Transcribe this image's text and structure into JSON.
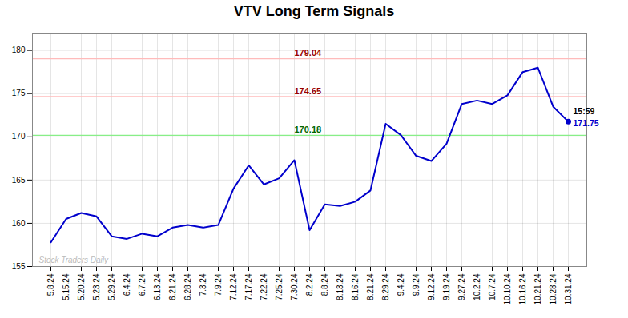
{
  "chart_data": {
    "type": "line",
    "title": "VTV Long Term Signals",
    "categories": [
      "5.8.24",
      "5.15.24",
      "5.20.24",
      "5.23.24",
      "5.29.24",
      "6.4.24",
      "6.7.24",
      "6.13.24",
      "6.21.24",
      "6.28.24",
      "7.3.24",
      "7.9.24",
      "7.12.24",
      "7.17.24",
      "7.22.24",
      "7.25.24",
      "7.30.24",
      "8.2.24",
      "8.8.24",
      "8.13.24",
      "8.16.24",
      "8.21.24",
      "8.29.24",
      "9.4.24",
      "9.9.24",
      "9.12.24",
      "9.19.24",
      "9.27.24",
      "10.2.24",
      "10.7.24",
      "10.10.24",
      "10.16.24",
      "10.21.24",
      "10.28.24",
      "10.31.24"
    ],
    "values": [
      157.8,
      160.5,
      161.2,
      160.8,
      158.5,
      158.2,
      158.8,
      158.5,
      159.5,
      159.8,
      159.5,
      159.8,
      164.0,
      166.7,
      164.5,
      165.2,
      167.3,
      159.2,
      162.2,
      162.0,
      162.5,
      163.8,
      171.5,
      170.2,
      167.8,
      167.2,
      169.2,
      173.8,
      174.2,
      173.8,
      174.8,
      177.5,
      178.0,
      173.5,
      171.75
    ],
    "color": "#0000cc",
    "ylim": [
      155,
      182
    ],
    "yticks": [
      155,
      160,
      165,
      170,
      175,
      180
    ],
    "grid": true,
    "hlines": [
      {
        "value": 179.04,
        "label": "179.04",
        "color": "#ffbbbb",
        "label_color": "#990000"
      },
      {
        "value": 174.65,
        "label": "174.65",
        "color": "#ffbbbb",
        "label_color": "#990000"
      },
      {
        "value": 170.18,
        "label": "170.18",
        "color": "#88ee88",
        "label_color": "#006600"
      }
    ],
    "highlight_point": {
      "x": "10.31.24",
      "y": 171.75
    },
    "annotations": [
      {
        "text": "15:59",
        "x": "10.31.24",
        "y": 171.75,
        "color": "black"
      },
      {
        "text": "171.75",
        "x": "10.31.24",
        "y": 171.75,
        "color": "#0000cc"
      }
    ],
    "watermark": "Stock Traders Daily",
    "watermark_color": "#bbbbbb"
  }
}
